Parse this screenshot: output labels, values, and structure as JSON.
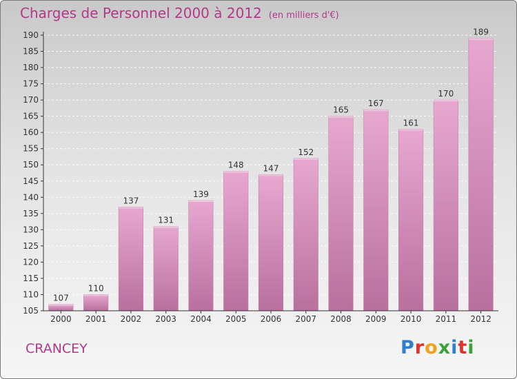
{
  "title": "Charges de Personnel 2000 à 2012",
  "unit_note": "(en milliers d'€)",
  "commune": "CRANCEY",
  "logo": {
    "letters": [
      {
        "ch": "P",
        "color": "#2e7fd0"
      },
      {
        "ch": "r",
        "color": "#e0342b"
      },
      {
        "ch": "o",
        "color": "#f2a21a"
      },
      {
        "ch": "x",
        "color": "#3aa23a"
      },
      {
        "ch": "i",
        "color": "#2e7fd0"
      },
      {
        "ch": "t",
        "color": "#e0342b"
      },
      {
        "ch": "i",
        "color": "#3aa23a"
      }
    ]
  },
  "colors": {
    "bar": "#d58fba",
    "bar_dark": "#b56a97",
    "text_accent": "#b03a8a",
    "axis": "#333333"
  },
  "chart_data": {
    "type": "bar",
    "title": "Charges de Personnel 2000 à 2012",
    "categories": [
      "2000",
      "2001",
      "2002",
      "2003",
      "2004",
      "2005",
      "2006",
      "2007",
      "2008",
      "2009",
      "2010",
      "2011",
      "2012"
    ],
    "values": [
      107,
      110,
      137,
      131,
      139,
      148,
      147,
      152,
      165,
      167,
      161,
      170,
      189
    ],
    "xlabel": "",
    "ylabel": "",
    "ylim": [
      105,
      190
    ],
    "yticks": [
      105,
      110,
      115,
      120,
      125,
      130,
      135,
      140,
      145,
      150,
      155,
      160,
      165,
      170,
      175,
      180,
      185,
      190
    ],
    "grid": true,
    "data_labels": true
  }
}
